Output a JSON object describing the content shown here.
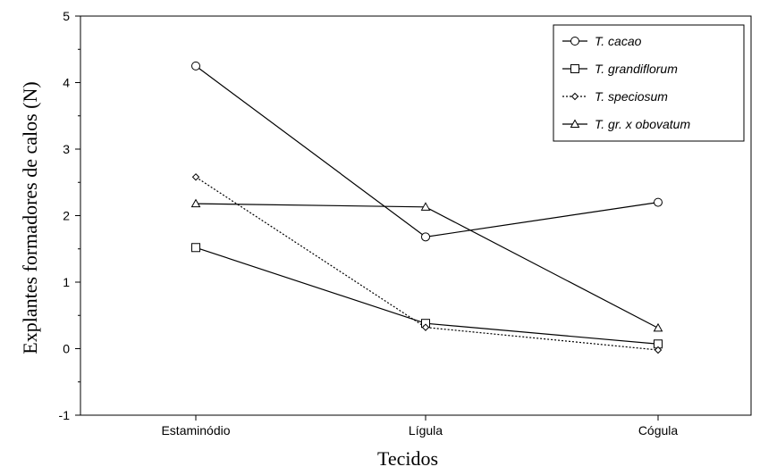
{
  "chart_data": {
    "type": "line",
    "xlabel": "Tecidos",
    "ylabel": "Explantes formadores de calos (N)",
    "categories": [
      "Estaminódio",
      "Lígula",
      "Cógula"
    ],
    "ylim": [
      -1,
      5
    ],
    "yticks": [
      "-1",
      "0",
      "1",
      "2",
      "3",
      "4",
      "5"
    ],
    "grid": false,
    "legend_position": "top-right",
    "series": [
      {
        "name": "T. cacao",
        "values": [
          4.25,
          1.68,
          2.2
        ],
        "marker": "circle",
        "line": "solid"
      },
      {
        "name": "T. grandiflorum",
        "values": [
          1.52,
          0.38,
          0.07
        ],
        "marker": "square",
        "line": "solid"
      },
      {
        "name": "T. speciosum",
        "values": [
          2.58,
          0.32,
          -0.02
        ],
        "marker": "diamond",
        "line": "dotted"
      },
      {
        "name": "T. gr. x obovatum",
        "values": [
          2.18,
          2.13,
          0.31
        ],
        "marker": "triangle",
        "line": "solid"
      }
    ]
  }
}
